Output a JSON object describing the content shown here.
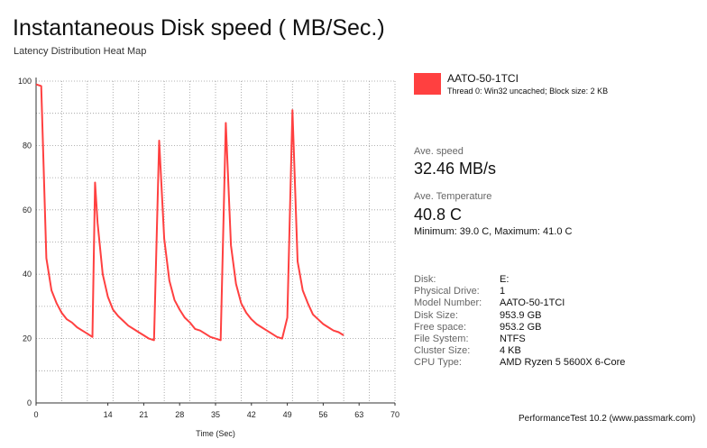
{
  "title": "Instantaneous Disk speed ( MB/Sec.)",
  "subtitle": "Latency Distribution Heat Map",
  "chart_data": {
    "type": "line",
    "title": "Instantaneous Disk speed ( MB/Sec.)",
    "xlabel": "Time (Sec)",
    "ylabel": "",
    "xlim": [
      0,
      70
    ],
    "ylim": [
      0,
      100
    ],
    "xticks": [
      "0",
      "14",
      "21",
      "28",
      "35",
      "42",
      "49",
      "56",
      "63",
      "70"
    ],
    "xtick_values": [
      0,
      14,
      21,
      28,
      35,
      42,
      49,
      56,
      63,
      70
    ],
    "yticks": [
      "0",
      "20",
      "40",
      "60",
      "80",
      "100"
    ],
    "ytick_values": [
      0,
      20,
      40,
      60,
      80,
      100
    ],
    "grid": true,
    "series": [
      {
        "name": "AATO-50-1TCI",
        "color": "#ff4040",
        "x": [
          0,
          1,
          2,
          3,
          4,
          5,
          6,
          7,
          8,
          9,
          10,
          11,
          11.5,
          12,
          13,
          14,
          15,
          16,
          17,
          18,
          19,
          20,
          21,
          22,
          23,
          24,
          25,
          26,
          27,
          28,
          29,
          30,
          31,
          32,
          33,
          34,
          35,
          36,
          37,
          38,
          39,
          40,
          41,
          42,
          43,
          44,
          45,
          46,
          47,
          48,
          49,
          50,
          51,
          52,
          53,
          54,
          55,
          56,
          57,
          58,
          59,
          60
        ],
        "values": [
          99,
          98.5,
          45,
          35,
          31,
          28,
          26,
          25,
          23.5,
          22.5,
          21.5,
          20.5,
          68.5,
          56,
          40,
          33,
          29,
          27,
          25.5,
          24,
          23,
          22,
          21,
          20,
          19.5,
          81.5,
          51,
          38,
          32,
          29,
          26.5,
          25,
          23,
          22.5,
          21.5,
          20.5,
          20,
          19.5,
          87,
          49,
          37,
          31,
          28,
          26,
          24.5,
          23.5,
          22.5,
          21.5,
          20.5,
          20,
          26.5,
          91,
          44,
          35,
          31,
          27.5,
          26,
          24.5,
          23.5,
          22.5,
          22,
          21
        ]
      }
    ]
  },
  "legend": {
    "color": "#ff4040",
    "name": "AATO-50-1TCI",
    "description": "Thread 0: Win32 uncached; Block size: 2 KB"
  },
  "stats": {
    "speed_label": "Ave. speed",
    "speed_value": "32.46 MB/s",
    "temp_label": "Ave. Temperature",
    "temp_value": "40.8 C",
    "temp_range": "Minimum: 39.0 C, Maximum: 41.0 C"
  },
  "info": [
    {
      "key": "Disk:",
      "value": "E:"
    },
    {
      "key": "Physical Drive:",
      "value": "1"
    },
    {
      "key": "Model Number:",
      "value": "AATO-50-1TCI"
    },
    {
      "key": "Disk Size:",
      "value": "953.9 GB"
    },
    {
      "key": "Free space:",
      "value": "953.2 GB"
    },
    {
      "key": "File System:",
      "value": "NTFS"
    },
    {
      "key": "Cluster Size:",
      "value": "4 KB"
    },
    {
      "key": "CPU Type:",
      "value": "AMD Ryzen 5 5600X 6-Core"
    }
  ],
  "footer": "PerformanceTest 10.2 (www.passmark.com)"
}
